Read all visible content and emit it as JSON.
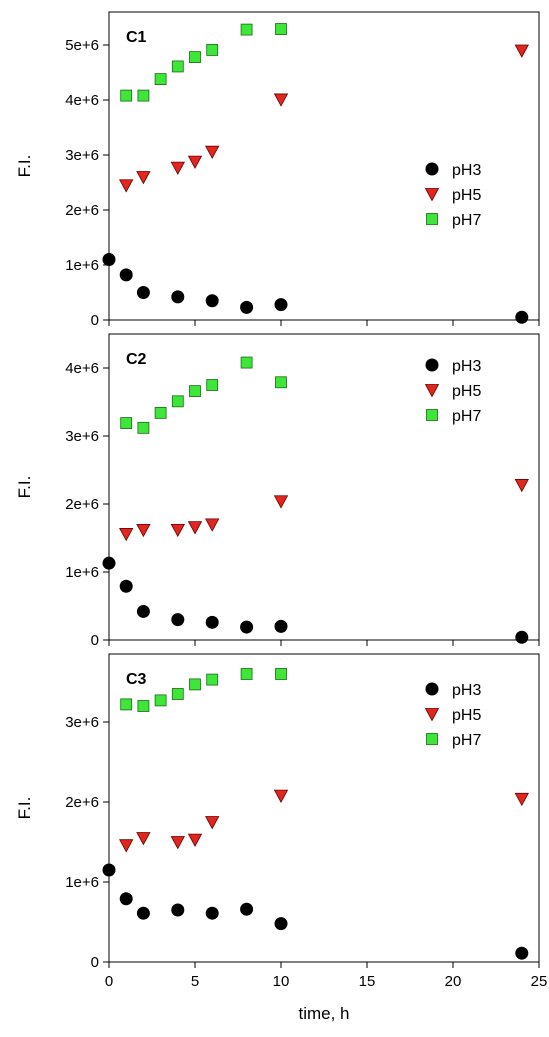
{
  "chart_data": [
    {
      "type": "scatter",
      "title": "C1",
      "xlabel": "",
      "ylabel": "F.I.",
      "xlim": [
        0,
        25
      ],
      "ylim": [
        0,
        5600000
      ],
      "xticks": [
        0,
        5,
        10,
        15,
        20,
        25
      ],
      "yticks": [
        0,
        1000000,
        2000000,
        3000000,
        4000000,
        5000000
      ],
      "ytick_labels": [
        "0",
        "1e+6",
        "2e+6",
        "3e+6",
        "4e+6",
        "5e+6"
      ],
      "legend": "right",
      "series": [
        {
          "name": "pH3",
          "marker": "circle",
          "color": "#000000",
          "x": [
            0,
            1,
            2,
            4,
            6,
            8,
            10,
            24
          ],
          "y": [
            1100000,
            820000,
            500000,
            420000,
            350000,
            230000,
            280000,
            50000
          ]
        },
        {
          "name": "pH5",
          "marker": "triangle-down",
          "color": "#e0261f",
          "x": [
            1,
            2,
            4,
            5,
            6,
            10,
            24
          ],
          "y": [
            2450000,
            2600000,
            2770000,
            2880000,
            3060000,
            4010000,
            4900000
          ]
        },
        {
          "name": "pH7",
          "marker": "square",
          "color": "#3ee63a",
          "x": [
            1,
            2,
            3,
            4,
            5,
            6,
            8,
            10
          ],
          "y": [
            4080000,
            4080000,
            4380000,
            4610000,
            4780000,
            4910000,
            5280000,
            5290000
          ]
        }
      ]
    },
    {
      "type": "scatter",
      "title": "C2",
      "xlabel": "",
      "ylabel": "F.I.",
      "xlim": [
        0,
        25
      ],
      "ylim": [
        0,
        4500000
      ],
      "xticks": [
        0,
        5,
        10,
        15,
        20,
        25
      ],
      "yticks": [
        0,
        1000000,
        2000000,
        3000000,
        4000000
      ],
      "ytick_labels": [
        "0",
        "1e+6",
        "2e+6",
        "3e+6",
        "4e+6"
      ],
      "legend": "top-right",
      "series": [
        {
          "name": "pH3",
          "marker": "circle",
          "color": "#000000",
          "x": [
            0,
            1,
            2,
            4,
            6,
            8,
            10,
            24
          ],
          "y": [
            1130000,
            790000,
            420000,
            300000,
            260000,
            190000,
            200000,
            40000
          ]
        },
        {
          "name": "pH5",
          "marker": "triangle-down",
          "color": "#e0261f",
          "x": [
            1,
            2,
            4,
            5,
            6,
            10,
            24
          ],
          "y": [
            1560000,
            1620000,
            1620000,
            1660000,
            1700000,
            2040000,
            2280000
          ]
        },
        {
          "name": "pH7",
          "marker": "square",
          "color": "#3ee63a",
          "x": [
            1,
            2,
            3,
            4,
            5,
            6,
            8,
            10
          ],
          "y": [
            3190000,
            3120000,
            3340000,
            3510000,
            3660000,
            3750000,
            4080000,
            3790000
          ]
        }
      ]
    },
    {
      "type": "scatter",
      "title": "C3",
      "xlabel": "time, h",
      "ylabel": "F.I.",
      "xlim": [
        0,
        25
      ],
      "ylim": [
        0,
        3850000
      ],
      "xticks": [
        0,
        5,
        10,
        15,
        20,
        25
      ],
      "xtick_labels": [
        "0",
        "5",
        "10",
        "15",
        "20",
        "25"
      ],
      "yticks": [
        0,
        1000000,
        2000000,
        3000000
      ],
      "ytick_labels": [
        "0",
        "1e+6",
        "2e+6",
        "3e+6"
      ],
      "legend": "top-right",
      "series": [
        {
          "name": "pH3",
          "marker": "circle",
          "color": "#000000",
          "x": [
            0,
            1,
            2,
            4,
            6,
            8,
            10,
            24
          ],
          "y": [
            1150000,
            790000,
            610000,
            650000,
            610000,
            660000,
            480000,
            110000
          ]
        },
        {
          "name": "pH5",
          "marker": "triangle-down",
          "color": "#e0261f",
          "x": [
            1,
            2,
            4,
            5,
            6,
            10,
            24
          ],
          "y": [
            1460000,
            1550000,
            1500000,
            1530000,
            1750000,
            2080000,
            2040000
          ]
        },
        {
          "name": "pH7",
          "marker": "square",
          "color": "#3ee63a",
          "x": [
            1,
            2,
            3,
            4,
            5,
            6,
            8,
            10
          ],
          "y": [
            3220000,
            3200000,
            3270000,
            3350000,
            3470000,
            3530000,
            3600000,
            3600000
          ]
        }
      ]
    }
  ]
}
